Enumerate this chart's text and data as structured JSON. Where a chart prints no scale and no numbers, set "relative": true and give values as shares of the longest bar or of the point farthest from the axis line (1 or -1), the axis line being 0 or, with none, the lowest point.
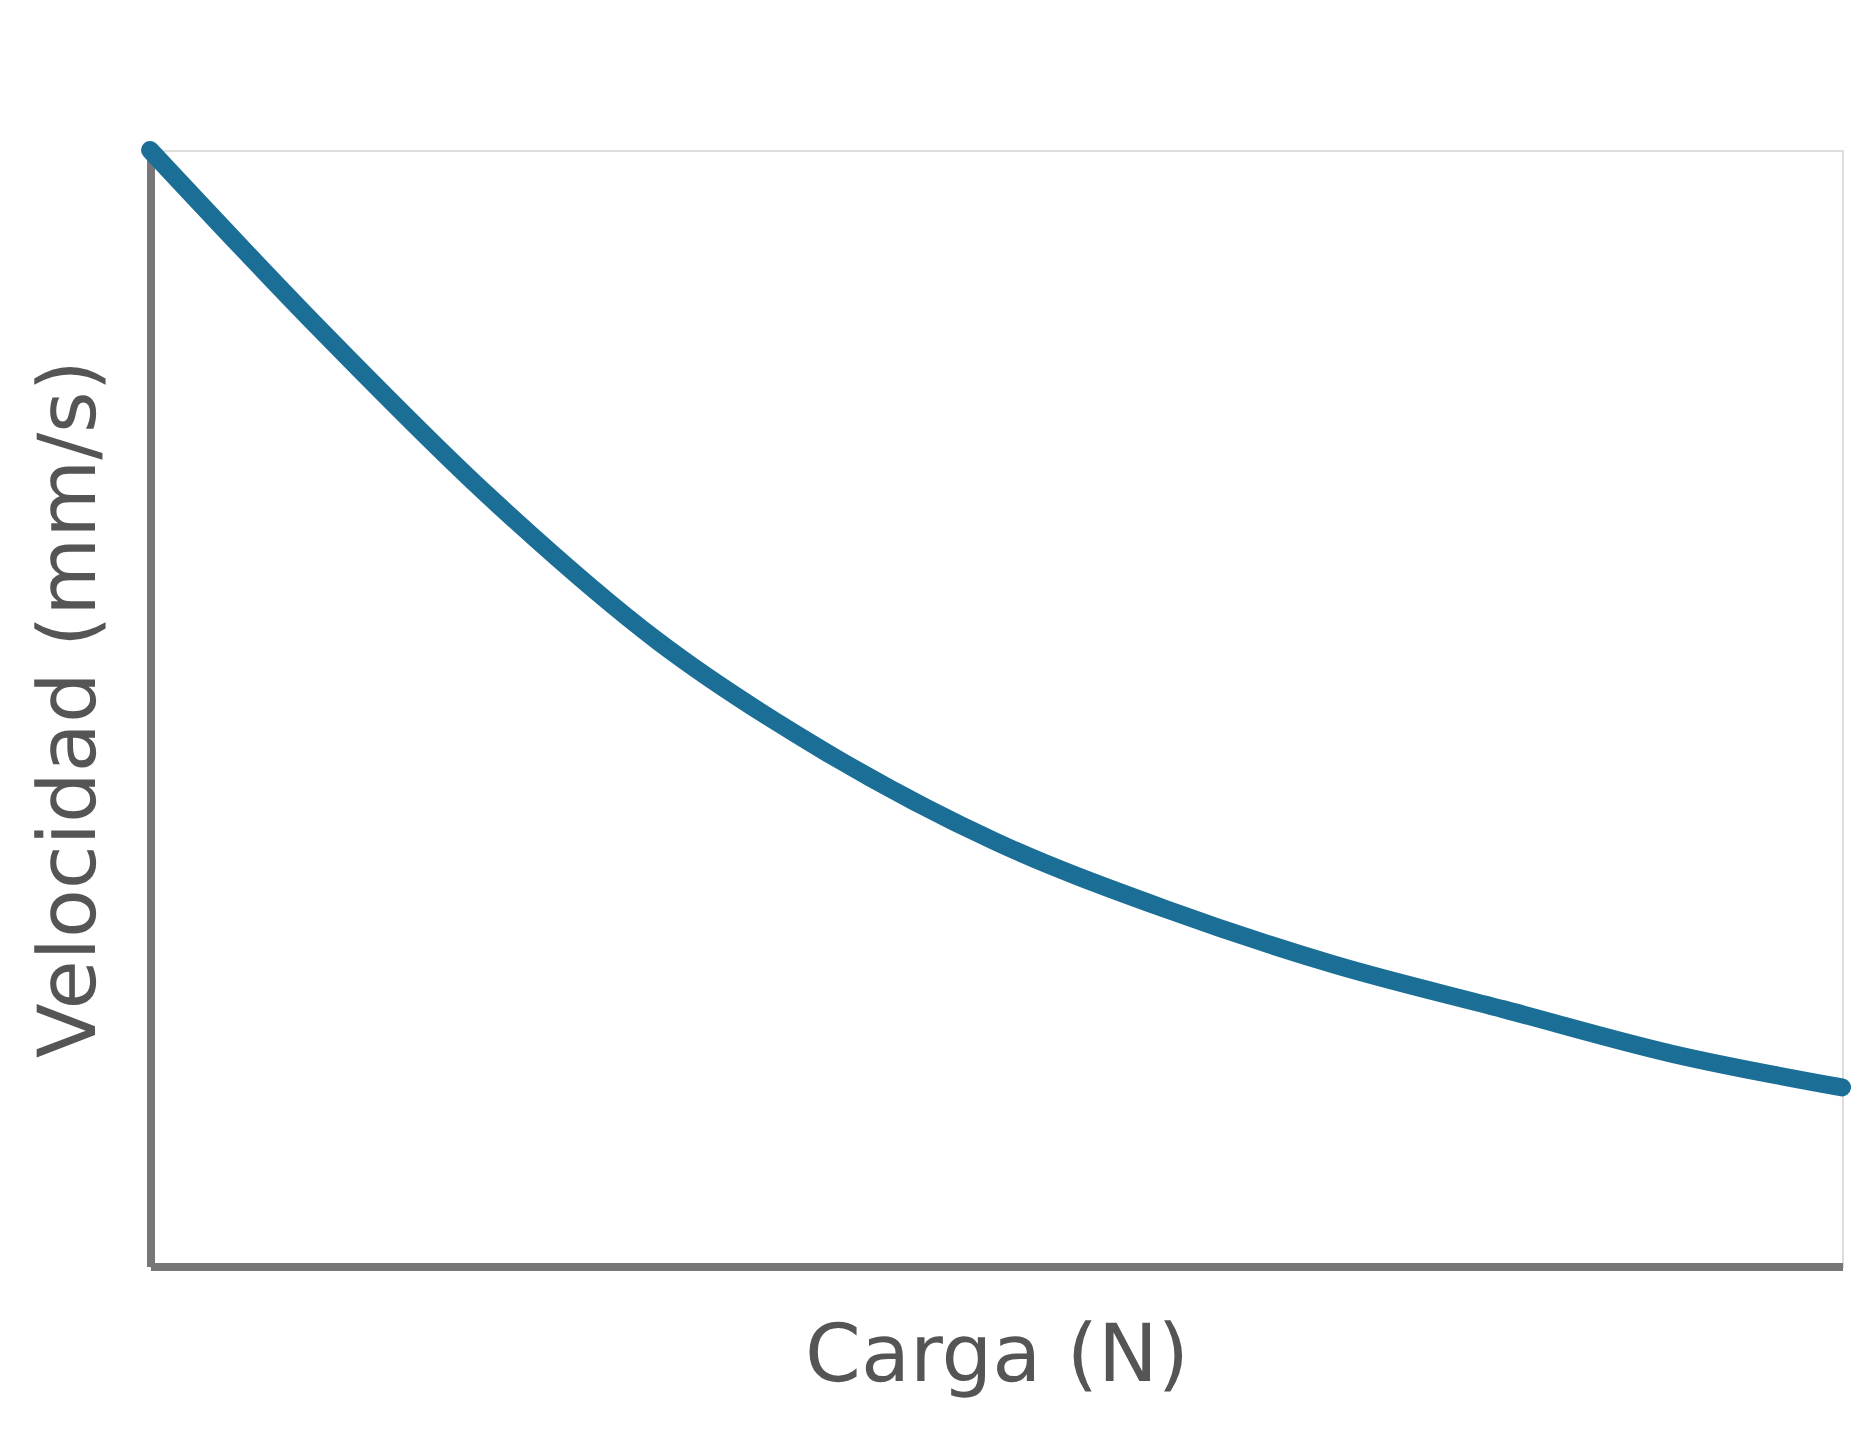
{
  "chart_data": {
    "type": "line",
    "relative": true,
    "xlabel": "Carga (N)",
    "ylabel": "Velocidad (mm/s)",
    "categories": [
      null,
      null,
      null,
      null,
      null,
      null,
      null,
      null,
      null,
      null,
      null
    ],
    "series": [
      {
        "color": "#1b6f96",
        "values": [
          1,
          0.84,
          0.69,
          0.56,
          0.46,
          0.38,
          0.32,
          0.27,
          0.23,
          0.19,
          0.16
        ]
      }
    ],
    "grid": false,
    "legend": false,
    "line_style": "solid"
  }
}
